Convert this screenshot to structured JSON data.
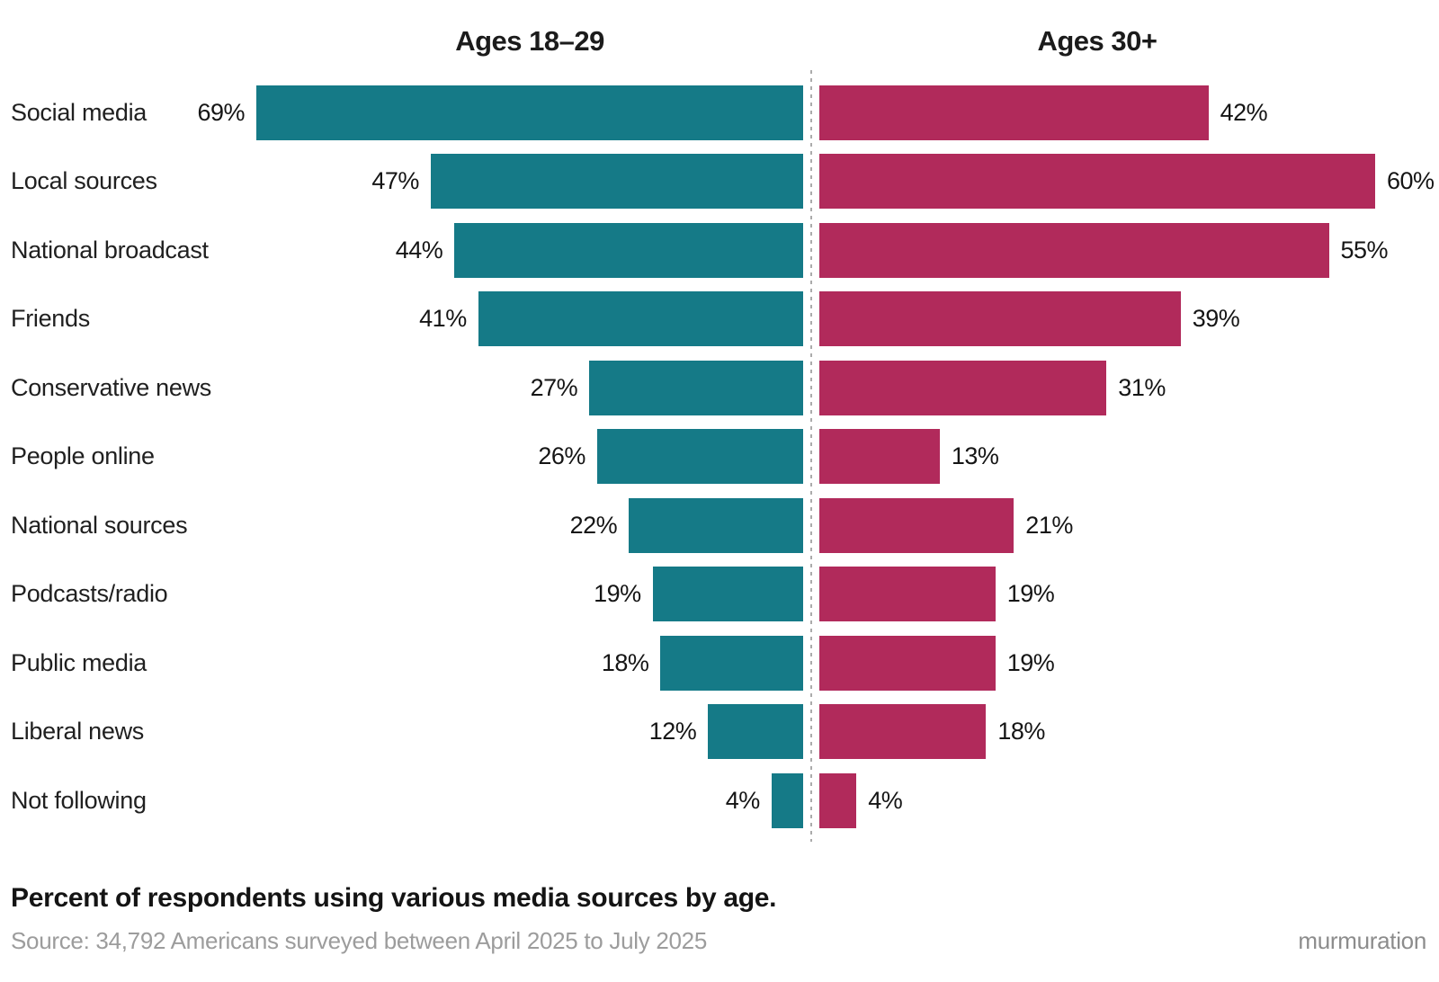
{
  "chart_data": {
    "type": "bar",
    "variant": "diverging-horizontal",
    "title": "Percent of respondents using various media sources by age.",
    "categories": [
      "Social media",
      "Local sources",
      "National broadcast",
      "Friends",
      "Conservative news",
      "People online",
      "National sources",
      "Podcasts/radio",
      "Public media",
      "Liberal news",
      "Not following"
    ],
    "series": [
      {
        "name": "Ages 18–29",
        "color": "#157A87",
        "values": [
          69,
          47,
          44,
          41,
          27,
          26,
          22,
          19,
          18,
          12,
          4
        ]
      },
      {
        "name": "Ages 30+",
        "color": "#B12A5B",
        "values": [
          42,
          60,
          55,
          39,
          31,
          13,
          21,
          19,
          19,
          18,
          4
        ]
      }
    ],
    "value_suffix": "%",
    "x_scale": {
      "left_max": 69,
      "right_max": 60
    },
    "grid": false,
    "legend_position": "column-headers-top",
    "divider": "dashed-vertical-center"
  },
  "footer": {
    "source": "Source: 34,792 Americans surveyed between April 2025 to July 2025",
    "brand": "murmuration"
  },
  "colors": {
    "left_bar": "#157A87",
    "right_bar": "#B12A5B",
    "divider": "#ABABAB",
    "label_text": "#202020",
    "value_text": "#151515",
    "caption_text": "#141414",
    "source_text": "#9C9C9C",
    "brand_text": "#8C8C8C"
  }
}
